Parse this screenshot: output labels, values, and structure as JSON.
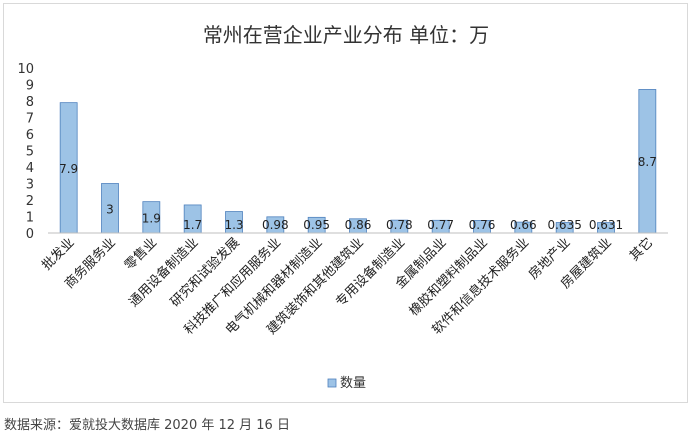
{
  "chart_data": {
    "type": "bar",
    "title": "常州在营企业产业分布 单位：万",
    "categories": [
      "批发业",
      "商务服务业",
      "零售业",
      "通用设备制造业",
      "研究和试验发展",
      "科技推广和应用服务业",
      "电气机械和器材制造业",
      "建筑装饰和其他建筑业",
      "专用设备制造业",
      "金属制品业",
      "橡胶和塑料制品业",
      "软件和信息技术服务业",
      "房地产业",
      "房屋建筑业",
      "其它"
    ],
    "series": [
      {
        "name": "数量",
        "values": [
          7.9,
          3,
          1.9,
          1.7,
          1.3,
          0.98,
          0.95,
          0.86,
          0.78,
          0.77,
          0.76,
          0.66,
          0.635,
          0.631,
          8.7
        ]
      }
    ],
    "data_labels": [
      "7.9",
      "3",
      "1.9",
      "1.7",
      "1.3",
      "0.98",
      "0.95",
      "0.86",
      "0.78",
      "0.77",
      "0.76",
      "0.66",
      "0.635",
      "0.631",
      "8.7"
    ],
    "yticks": [
      "0",
      "1",
      "2",
      "3",
      "4",
      "5",
      "6",
      "7",
      "8",
      "9",
      "10"
    ],
    "ylim": [
      0,
      10
    ],
    "grid": false,
    "legend_position": "bottom",
    "bar_color": "#9dc3e6",
    "bar_edge_color": "#4f81bd"
  },
  "source": "数据来源：爱就投大数据库 2020 年 12 月 16 日"
}
